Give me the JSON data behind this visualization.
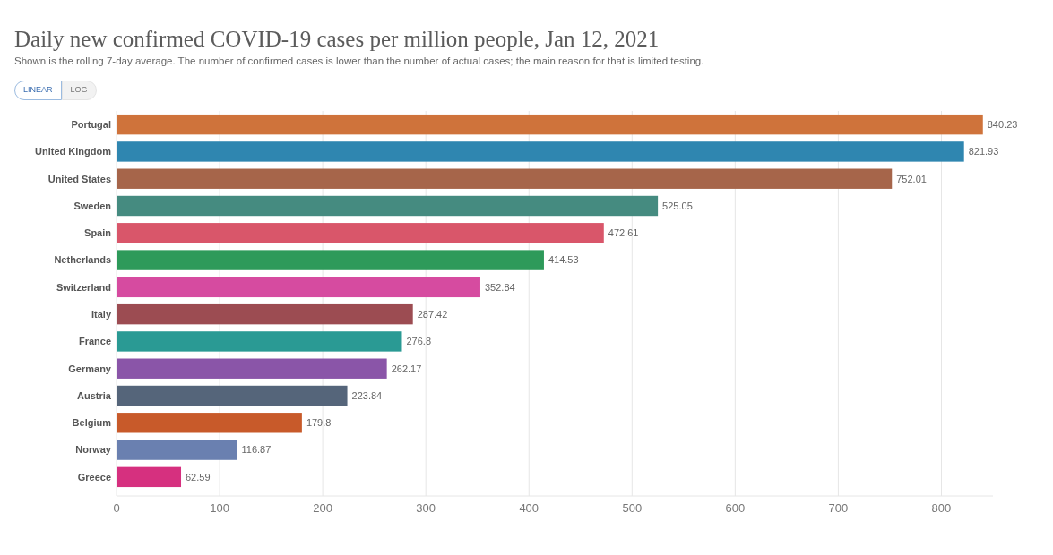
{
  "chart_data": {
    "type": "bar",
    "orientation": "horizontal",
    "title": "Daily new confirmed COVID-19 cases per million people, Jan 12, 2021",
    "subtitle": "Shown is the rolling 7-day average. The number of confirmed cases is lower than the number of actual cases; the main reason for that is limited testing.",
    "annotations": [
      "LINEAR",
      "LOG"
    ],
    "categories": [
      "Portugal",
      "United Kingdom",
      "United States",
      "Sweden",
      "Spain",
      "Netherlands",
      "Switzerland",
      "Italy",
      "France",
      "Germany",
      "Austria",
      "Belgium",
      "Norway",
      "Greece"
    ],
    "values": [
      840.23,
      821.93,
      752.01,
      525.05,
      472.61,
      414.53,
      352.84,
      287.42,
      276.8,
      262.17,
      223.84,
      179.8,
      116.87,
      62.59
    ],
    "colors": [
      "#cf733b",
      "#2f86b0",
      "#a6654a",
      "#458b80",
      "#d9566a",
      "#2e9a5a",
      "#d64ba0",
      "#9c4c52",
      "#2a9a94",
      "#8a55a8",
      "#55657a",
      "#c85a2a",
      "#6a80b0",
      "#d6307f"
    ],
    "xlim": [
      0,
      850
    ],
    "xticks": [
      0,
      100,
      200,
      300,
      400,
      500,
      600,
      700,
      800
    ],
    "grid": "x",
    "data_labels": true
  }
}
